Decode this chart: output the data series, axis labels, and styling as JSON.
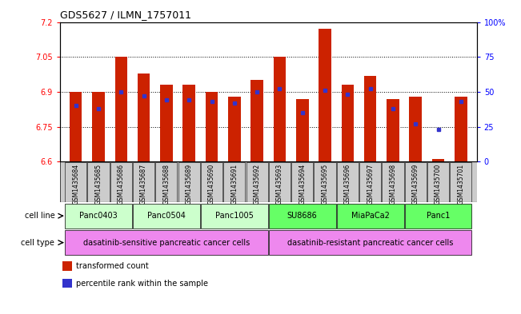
{
  "title": "GDS5627 / ILMN_1757011",
  "samples": [
    "GSM1435684",
    "GSM1435685",
    "GSM1435686",
    "GSM1435687",
    "GSM1435688",
    "GSM1435689",
    "GSM1435690",
    "GSM1435691",
    "GSM1435692",
    "GSM1435693",
    "GSM1435694",
    "GSM1435695",
    "GSM1435696",
    "GSM1435697",
    "GSM1435698",
    "GSM1435699",
    "GSM1435700",
    "GSM1435701"
  ],
  "transformed_count": [
    6.9,
    6.9,
    7.05,
    6.98,
    6.93,
    6.93,
    6.9,
    6.88,
    6.95,
    7.05,
    6.87,
    7.17,
    6.93,
    6.97,
    6.87,
    6.88,
    6.61,
    6.88
  ],
  "percentile_rank": [
    40,
    38,
    50,
    47,
    44,
    44,
    43,
    42,
    50,
    52,
    35,
    51,
    48,
    52,
    38,
    27,
    23,
    43
  ],
  "ymin": 6.6,
  "ymax": 7.2,
  "yticks": [
    6.6,
    6.75,
    6.9,
    7.05,
    7.2
  ],
  "ytick_labels": [
    "6.6",
    "6.75",
    "6.9",
    "7.05",
    "7.2"
  ],
  "right_yticks": [
    0,
    25,
    50,
    75,
    100
  ],
  "right_ytick_labels": [
    "0",
    "25",
    "50",
    "75",
    "100%"
  ],
  "bar_color": "#cc2200",
  "dot_color": "#3333cc",
  "bar_width": 0.55,
  "cell_lines": [
    {
      "label": "Panc0403",
      "start": 0,
      "end": 2,
      "color": "#ccffcc"
    },
    {
      "label": "Panc0504",
      "start": 3,
      "end": 5,
      "color": "#ccffcc"
    },
    {
      "label": "Panc1005",
      "start": 6,
      "end": 8,
      "color": "#ccffcc"
    },
    {
      "label": "SU8686",
      "start": 9,
      "end": 11,
      "color": "#66ff66"
    },
    {
      "label": "MiaPaCa2",
      "start": 12,
      "end": 14,
      "color": "#66ff66"
    },
    {
      "label": "Panc1",
      "start": 15,
      "end": 17,
      "color": "#66ff66"
    }
  ],
  "cell_types": [
    {
      "label": "dasatinib-sensitive pancreatic cancer cells",
      "start": 0,
      "end": 8,
      "color": "#ee88ee"
    },
    {
      "label": "dasatinib-resistant pancreatic cancer cells",
      "start": 9,
      "end": 17,
      "color": "#ee88ee"
    }
  ],
  "sample_bg_color": "#cccccc",
  "legend_items": [
    {
      "color": "#cc2200",
      "label": "transformed count"
    },
    {
      "color": "#3333cc",
      "label": "percentile rank within the sample"
    }
  ],
  "cell_line_label": "cell line",
  "cell_type_label": "cell type"
}
